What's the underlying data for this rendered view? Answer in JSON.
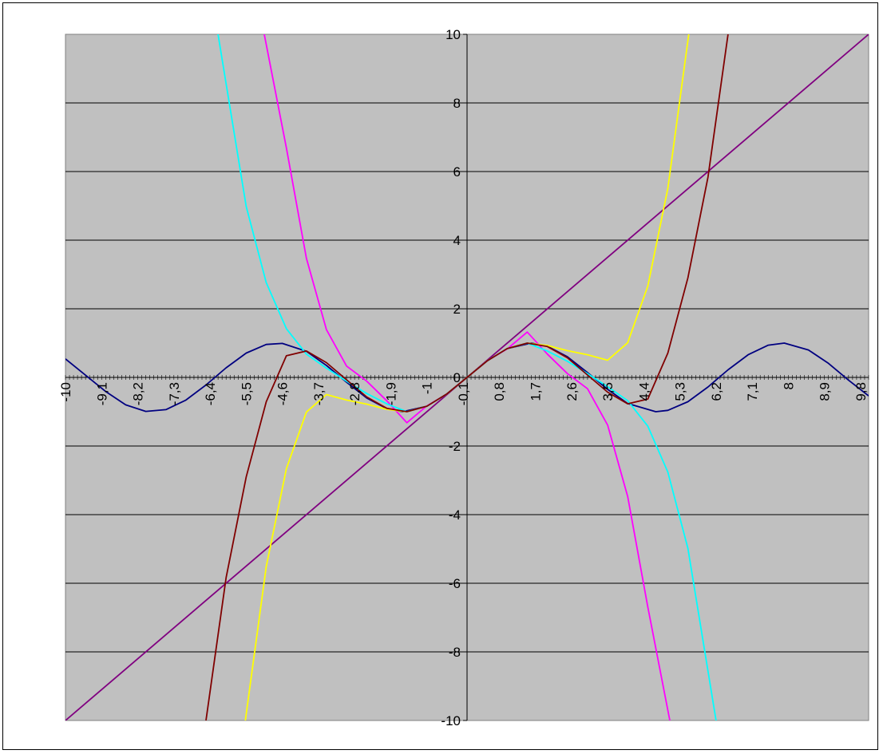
{
  "chart_data": {
    "type": "line",
    "title": "",
    "xlabel": "",
    "ylabel": "",
    "xlim": [
      -10,
      10
    ],
    "ylim": [
      -10,
      10
    ],
    "grid": "horizontal",
    "legend": "none",
    "plot_background": "#C0C0C0",
    "x_tick_labels": [
      "-10",
      "-9,1",
      "-8,2",
      "-7,3",
      "-6,4",
      "-5,5",
      "-4,6",
      "-3,7",
      "-2,8",
      "-1,9",
      "-1",
      "-0,1",
      "0,8",
      "1,7",
      "2,6",
      "3,5",
      "4,4",
      "5,3",
      "6,2",
      "7,1",
      "8",
      "8,9",
      "9,8"
    ],
    "y_tick_labels": [
      "10",
      "8",
      "6",
      "4",
      "2",
      "0",
      "-2",
      "-4",
      "-6",
      "-8",
      "-10"
    ],
    "series": [
      {
        "color": "#000080",
        "x": [
          -10,
          -9,
          -8.5,
          -8,
          -7.5,
          -7,
          -6.5,
          -6,
          -5.5,
          -5,
          -4.6,
          -4,
          -3.5,
          -3,
          -2.5,
          -2,
          -1.6,
          -1,
          -0.5,
          0,
          0.5,
          1,
          1.6,
          2,
          2.5,
          3,
          3.5,
          4,
          4.7,
          5,
          5.5,
          6,
          6.5,
          7,
          7.5,
          7.9,
          8.5,
          9,
          9.5,
          10
        ],
        "y": [
          0.54,
          -0.41,
          -0.8,
          -0.99,
          -0.94,
          -0.66,
          -0.22,
          0.28,
          0.71,
          0.96,
          0.99,
          0.76,
          0.35,
          -0.14,
          -0.6,
          -0.91,
          -1.0,
          -0.84,
          -0.48,
          0,
          0.48,
          0.84,
          1.0,
          0.91,
          0.6,
          0.14,
          -0.35,
          -0.76,
          -1.0,
          -0.96,
          -0.71,
          -0.28,
          0.22,
          0.66,
          0.94,
          1.0,
          0.8,
          0.41,
          -0.08,
          -0.54
        ]
      },
      {
        "color": "#800080",
        "x": [
          -10,
          10
        ],
        "y": [
          -10,
          10
        ]
      },
      {
        "color": "#FF00FF",
        "x": [
          -5.05,
          -4.5,
          -4,
          -3.5,
          -3,
          -2.5,
          -2,
          -1.5,
          -1,
          -0.5,
          0,
          0.5,
          1,
          1.5,
          2,
          2.5,
          3,
          3.5,
          4,
          4.5,
          5.05
        ],
        "y": [
          10,
          6.69,
          3.47,
          1.39,
          0.33,
          -0.11,
          -0.68,
          -1.32,
          -0.83,
          -0.48,
          0,
          0.48,
          0.83,
          1.32,
          0.68,
          0.11,
          -0.33,
          -1.39,
          -3.47,
          -6.69,
          -10
        ]
      },
      {
        "color": "#FFFF00",
        "x": [
          -5.52,
          -5,
          -4.5,
          -4,
          -3.5,
          -3,
          -2.5,
          -2,
          -1.5,
          -1,
          -0.5,
          0,
          0.5,
          1,
          1.5,
          2,
          2.5,
          3,
          3.5,
          4,
          4.5,
          5,
          5.52
        ],
        "y": [
          -10,
          -5.51,
          -2.66,
          -1.01,
          -0.5,
          -0.66,
          -0.78,
          -0.93,
          -1.0,
          -0.84,
          -0.48,
          0,
          0.48,
          0.84,
          1.0,
          0.93,
          0.78,
          0.66,
          0.5,
          1.01,
          2.66,
          5.51,
          10
        ]
      },
      {
        "color": "#00FFFF",
        "x": [
          -6.2,
          -6,
          -5.5,
          -5,
          -4.5,
          -4,
          -3.5,
          -3,
          -2.5,
          -2,
          -1.5,
          -1,
          -0.5,
          0,
          0.5,
          1,
          1.5,
          2,
          2.5,
          3,
          3.5,
          4,
          4.5,
          5,
          5.5,
          6,
          6.2
        ],
        "y": [
          10,
          8.56,
          4.98,
          2.76,
          1.42,
          0.68,
          0.27,
          -0.11,
          -0.47,
          -0.77,
          -1.0,
          -0.84,
          -0.48,
          0,
          0.48,
          0.84,
          1.0,
          0.77,
          0.47,
          0.11,
          -0.27,
          -0.68,
          -1.42,
          -2.76,
          -4.98,
          -8.56,
          -10
        ]
      },
      {
        "color": "#800000",
        "x": [
          -6.5,
          -6,
          -5.5,
          -5,
          -4.5,
          -4,
          -3.5,
          -3,
          -2.5,
          -2,
          -1.5,
          -1,
          -0.5,
          0,
          0.5,
          1,
          1.5,
          2,
          2.5,
          3,
          3.5,
          4,
          4.5,
          5,
          5.5,
          6,
          6.5
        ],
        "y": [
          -10,
          -5.84,
          -2.9,
          -0.71,
          0.63,
          0.77,
          0.43,
          -0.07,
          -0.57,
          -0.9,
          -1.0,
          -0.84,
          -0.48,
          0,
          0.48,
          0.84,
          1.0,
          0.9,
          0.57,
          0.07,
          -0.43,
          -0.77,
          -0.63,
          0.71,
          2.9,
          5.84,
          10
        ]
      }
    ]
  }
}
